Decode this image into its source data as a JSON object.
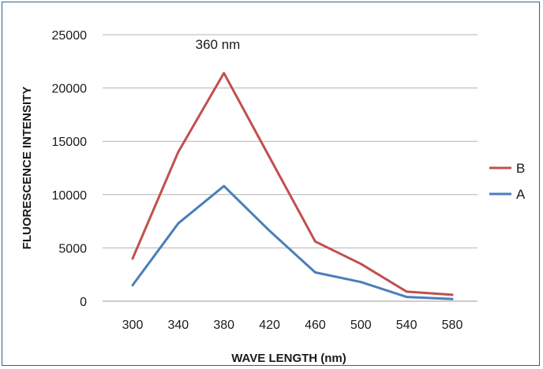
{
  "chart_data": {
    "type": "line",
    "categories": [
      "300",
      "340",
      "380",
      "420",
      "460",
      "500",
      "540",
      "580"
    ],
    "series": [
      {
        "name": "B",
        "color": "#c0504d",
        "values": [
          4000,
          14000,
          21400,
          13500,
          5600,
          3500,
          900,
          600
        ]
      },
      {
        "name": "A",
        "color": "#4a7ebb",
        "values": [
          1500,
          7300,
          10800,
          6600,
          2700,
          1800,
          400,
          200
        ]
      }
    ],
    "title": "",
    "annotation": "360 nm",
    "xlabel": "WAVE LENGTH (nm)",
    "ylabel": "FLUORESCENCE INTENSITY",
    "ylim": [
      0,
      25000
    ],
    "yticks": [
      "0",
      "5000",
      "10000",
      "15000",
      "20000",
      "25000"
    ],
    "grid": true,
    "legend": "right",
    "gridline_color": "#b3b3b3"
  }
}
